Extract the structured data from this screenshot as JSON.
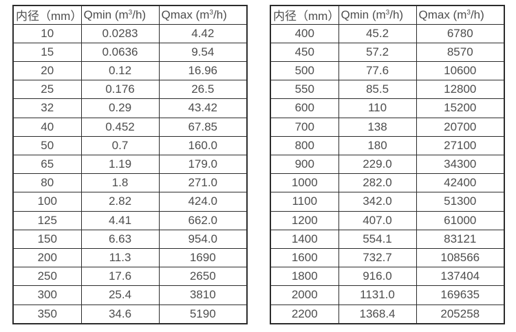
{
  "header": {
    "diameter": "内径（mm）",
    "qmin_prefix": "Qmin (m",
    "qmax_prefix": "Qmax (m",
    "superscript": "3",
    "unit_suffix": "/h)"
  },
  "colors": {
    "border": "#2b2b2b",
    "text": "#4d4d4d",
    "background": "#ffffff"
  },
  "tables": [
    {
      "name": "small-diameter-flow-specs",
      "rows": [
        [
          "10",
          "0.0283",
          "4.42"
        ],
        [
          "15",
          "0.0636",
          "9.54"
        ],
        [
          "20",
          "0.12",
          "16.96"
        ],
        [
          "25",
          "0.176",
          "26.5"
        ],
        [
          "32",
          "0.29",
          "43.42"
        ],
        [
          "40",
          "0.452",
          "67.85"
        ],
        [
          "50",
          "0.7",
          "160.0"
        ],
        [
          "65",
          "1.19",
          "179.0"
        ],
        [
          "80",
          "1.8",
          "271.0"
        ],
        [
          "100",
          "2.82",
          "424.0"
        ],
        [
          "125",
          "4.41",
          "662.0"
        ],
        [
          "150",
          "6.63",
          "954.0"
        ],
        [
          "200",
          "11.3",
          "1690"
        ],
        [
          "250",
          "17.6",
          "2650"
        ],
        [
          "300",
          "25.4",
          "3810"
        ],
        [
          "350",
          "34.6",
          "5190"
        ]
      ]
    },
    {
      "name": "large-diameter-flow-specs",
      "rows": [
        [
          "400",
          "45.2",
          "6780"
        ],
        [
          "450",
          "57.2",
          "8570"
        ],
        [
          "500",
          "77.6",
          "10600"
        ],
        [
          "550",
          "85.5",
          "12800"
        ],
        [
          "600",
          "110",
          "15200"
        ],
        [
          "700",
          "138",
          "20700"
        ],
        [
          "800",
          "180",
          "27100"
        ],
        [
          "900",
          "229.0",
          "34300"
        ],
        [
          "1000",
          "282.0",
          "42400"
        ],
        [
          "1100",
          "342.0",
          "51300"
        ],
        [
          "1200",
          "407.0",
          "61000"
        ],
        [
          "1400",
          "554.1",
          "83121"
        ],
        [
          "1600",
          "732.7",
          "108566"
        ],
        [
          "1800",
          "916.0",
          "137404"
        ],
        [
          "2000",
          "1131.0",
          "169635"
        ],
        [
          "2200",
          "1368.4",
          "205258"
        ]
      ]
    }
  ]
}
